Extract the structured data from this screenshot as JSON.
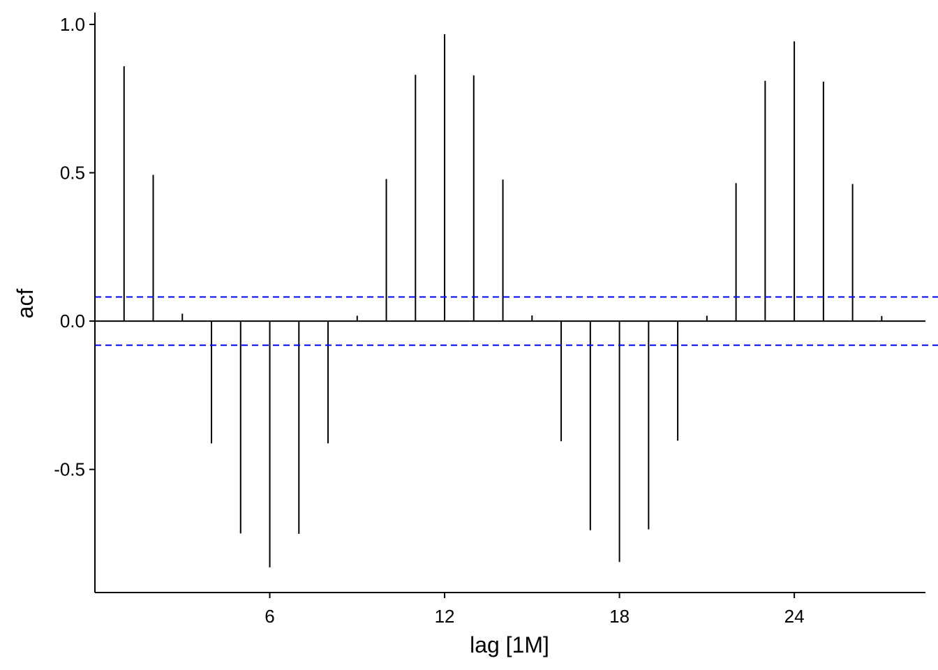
{
  "chart_data": {
    "type": "bar",
    "xlabel": "lag [1M]",
    "ylabel": "acf",
    "xlim": [
      0,
      28.5
    ],
    "ylim": [
      -0.915,
      1.04
    ],
    "x_ticks": [
      6,
      12,
      18,
      24
    ],
    "y_ticks": [
      -0.5,
      0.0,
      0.5,
      1.0
    ],
    "y_tick_labels": [
      "-0.5",
      "0.0",
      "0.5",
      "1.0"
    ],
    "x": [
      1,
      2,
      3,
      4,
      5,
      6,
      7,
      8,
      9,
      10,
      11,
      12,
      13,
      14,
      15,
      16,
      17,
      18,
      19,
      20,
      21,
      22,
      23,
      24,
      25,
      26,
      27
    ],
    "values": [
      0.859,
      0.493,
      0.025,
      -0.412,
      -0.716,
      -0.83,
      -0.717,
      -0.412,
      0.018,
      0.479,
      0.83,
      0.967,
      0.828,
      0.477,
      0.019,
      -0.405,
      -0.705,
      -0.812,
      -0.702,
      -0.403,
      0.018,
      0.465,
      0.81,
      0.943,
      0.807,
      0.462,
      0.017
    ],
    "confidence_bound": 0.0812,
    "colors": {
      "spike": "#000000",
      "bound": "#0000ff",
      "axis": "#000000"
    },
    "grid": false,
    "legend": "none"
  }
}
